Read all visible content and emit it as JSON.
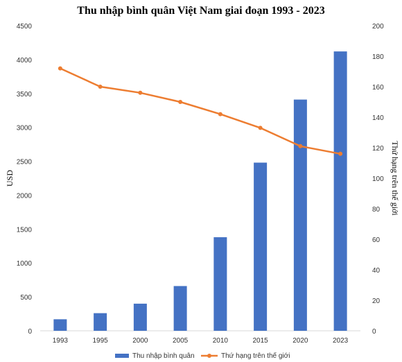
{
  "chart_data": {
    "type": "bar",
    "title": "Thu nhập bình quân Việt Nam giai đoạn 1993 - 2023",
    "categories": [
      "1993",
      "1995",
      "2000",
      "2005",
      "2010",
      "2015",
      "2020",
      "2023"
    ],
    "ylabel": "USD",
    "y2label": "Thứ hạng trên thế giới",
    "ylim": [
      0,
      4500
    ],
    "y2lim": [
      0,
      200
    ],
    "yticks": [
      0,
      500,
      1000,
      1500,
      2000,
      2500,
      3000,
      3500,
      4000,
      4500
    ],
    "y2ticks": [
      0,
      20,
      40,
      60,
      80,
      100,
      120,
      140,
      160,
      180,
      200
    ],
    "grid": false,
    "legend_position": "bottom",
    "series": [
      {
        "name": "Thu nhập bình quân",
        "type": "bar",
        "axis": "left",
        "color": "#4472C4",
        "values": [
          170,
          260,
          400,
          660,
          1380,
          2480,
          3410,
          4120
        ]
      },
      {
        "name": "Thứ hạng trên thế giới",
        "type": "line",
        "axis": "right",
        "color": "#ED7D31",
        "values": [
          172,
          160,
          156,
          150,
          142,
          133,
          121,
          116
        ]
      }
    ]
  }
}
